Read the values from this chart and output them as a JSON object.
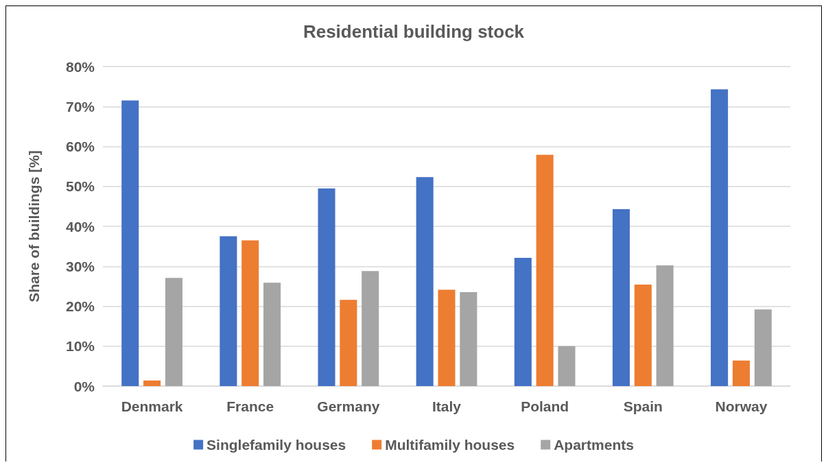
{
  "chart_data": {
    "type": "bar",
    "title": "Residential building stock",
    "ylabel": "Share of buildings [%]",
    "categories": [
      "Denmark",
      "France",
      "Germany",
      "Italy",
      "Poland",
      "Spain",
      "Norway"
    ],
    "series": [
      {
        "name": "Singlefamily houses",
        "color": "#4472c4",
        "values": [
          71.5,
          37.5,
          49.5,
          52.3,
          32.1,
          44.3,
          74.3
        ]
      },
      {
        "name": "Multifamily houses",
        "color": "#ed7d31",
        "values": [
          1.4,
          36.5,
          21.6,
          24.1,
          57.9,
          25.4,
          6.4
        ]
      },
      {
        "name": "Apartments",
        "color": "#a5a5a5",
        "values": [
          27.1,
          25.9,
          28.8,
          23.5,
          10.0,
          30.2,
          19.2
        ]
      }
    ],
    "ylim": [
      0,
      80
    ],
    "yticks": [
      {
        "value": 0,
        "label": "0%"
      },
      {
        "value": 10,
        "label": "10%"
      },
      {
        "value": 20,
        "label": "20%"
      },
      {
        "value": 30,
        "label": "30%"
      },
      {
        "value": 40,
        "label": "40%"
      },
      {
        "value": 50,
        "label": "50%"
      },
      {
        "value": 60,
        "label": "60%"
      },
      {
        "value": 70,
        "label": "70%"
      },
      {
        "value": 80,
        "label": "80%"
      }
    ],
    "grid": "y",
    "legend": "bottom"
  }
}
